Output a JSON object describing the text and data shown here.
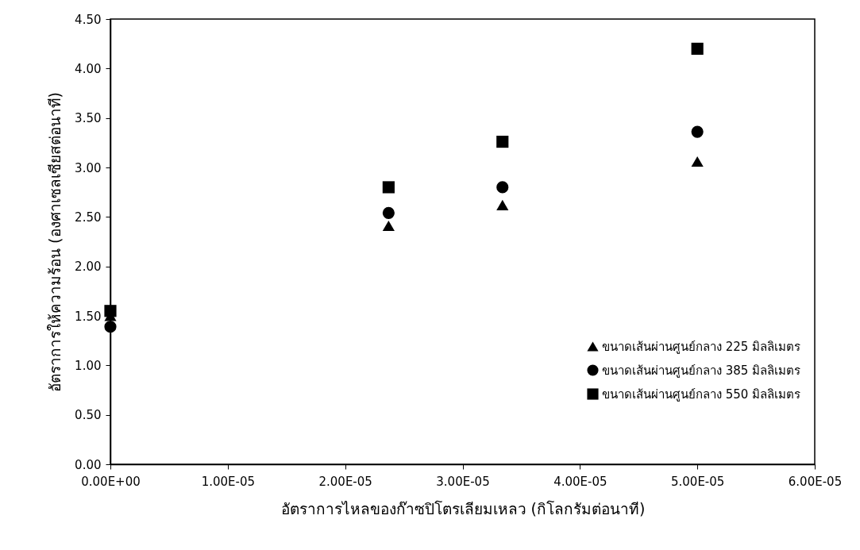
{
  "chart_data": {
    "type": "scatter",
    "xlabel": "อัตราการไหลของก๊าซปิโตรเลียมเหลว (กิโลกรัมต่อนาที)",
    "ylabel": "อัตราการให้ความร้อน (องศาเซลเซียสต่อนาที)",
    "x": [
      0,
      2.37e-05,
      3.34e-05,
      5e-05
    ],
    "series": [
      {
        "name": "ขนาดเส้นผ่านศูนย์กลาง 225 มิลลิเมตร",
        "color": "#000000",
        "marker": "triangle",
        "values": [
          1.5,
          2.41,
          2.62,
          3.06
        ]
      },
      {
        "name": "ขนาดเส้นผ่านศูนย์กลาง 385 มิลลิเมตร",
        "color": "#000000",
        "marker": "circle",
        "values": [
          1.39,
          2.54,
          2.8,
          3.36
        ]
      },
      {
        "name": "ขนาดเส้นผ่านศูนย์กลาง 550 มิลลิเมตร",
        "color": "#000000",
        "marker": "square",
        "values": [
          1.55,
          2.8,
          3.26,
          4.2
        ]
      }
    ],
    "xlim": [
      0,
      6e-05
    ],
    "xticks": [
      {
        "value": 0,
        "label": "0.00E+00"
      },
      {
        "value": 1e-05,
        "label": "1.00E-05"
      },
      {
        "value": 2e-05,
        "label": "2.00E-05"
      },
      {
        "value": 3e-05,
        "label": "3.00E-05"
      },
      {
        "value": 4e-05,
        "label": "4.00E-05"
      },
      {
        "value": 5e-05,
        "label": "5.00E-05"
      },
      {
        "value": 6e-05,
        "label": "6.00E-05"
      }
    ],
    "ylim": [
      0,
      4.5
    ],
    "yticks": [
      {
        "value": 0,
        "label": "0.00"
      },
      {
        "value": 0.5,
        "label": "0.50"
      },
      {
        "value": 1,
        "label": "1.00"
      },
      {
        "value": 1.5,
        "label": "1.50"
      },
      {
        "value": 2,
        "label": "2.00"
      },
      {
        "value": 2.5,
        "label": "2.50"
      },
      {
        "value": 3,
        "label": "3.00"
      },
      {
        "value": 3.5,
        "label": "3.50"
      },
      {
        "value": 4,
        "label": "4.00"
      },
      {
        "value": 4.5,
        "label": "4.50"
      }
    ],
    "grid": false,
    "legend": "bottom right"
  }
}
